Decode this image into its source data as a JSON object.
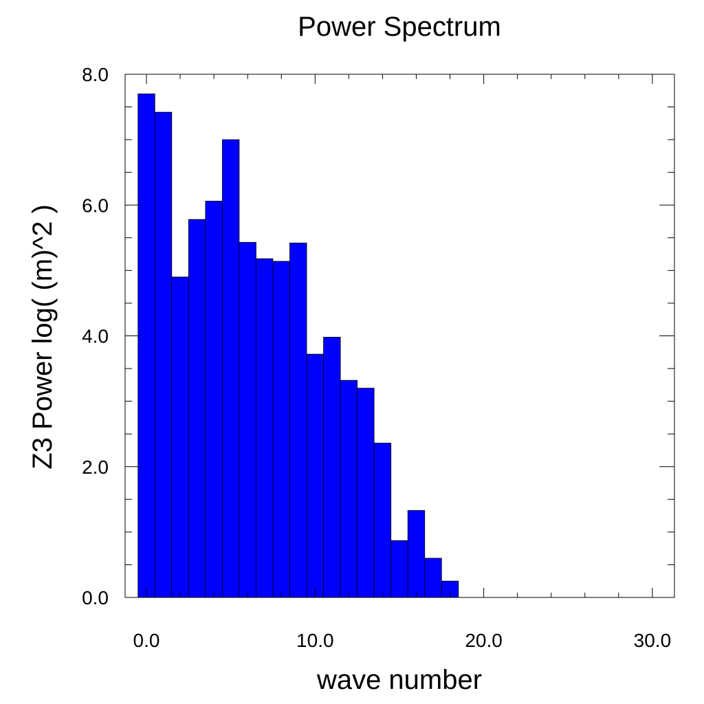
{
  "chart_data": {
    "type": "bar",
    "title": "Power Spectrum",
    "xlabel": "wave number",
    "ylabel": "Z3 Power log( (m)^2 )",
    "x": [
      0,
      1,
      2,
      3,
      4,
      5,
      6,
      7,
      8,
      9,
      10,
      11,
      12,
      13,
      14,
      15,
      16,
      17,
      18,
      19,
      20,
      21,
      22,
      23,
      24,
      25,
      26,
      27,
      28,
      29,
      30
    ],
    "values": [
      7.7,
      7.42,
      4.9,
      5.78,
      6.06,
      7.0,
      5.43,
      5.18,
      5.14,
      5.42,
      3.72,
      3.98,
      3.32,
      3.2,
      2.36,
      0.87,
      1.33,
      0.6,
      0.25,
      0,
      0,
      0,
      0,
      0,
      0,
      0,
      0,
      0,
      0,
      0,
      0
    ],
    "xlim": [
      -0.5,
      30.5
    ],
    "ylim": [
      0,
      8
    ],
    "xticks": [
      "0.0",
      "10.0",
      "20.0",
      "30.0"
    ],
    "yticks": [
      "0.0",
      "2.0",
      "4.0",
      "6.0",
      "8.0"
    ],
    "bar_color": "#0000ff",
    "grid": false
  }
}
